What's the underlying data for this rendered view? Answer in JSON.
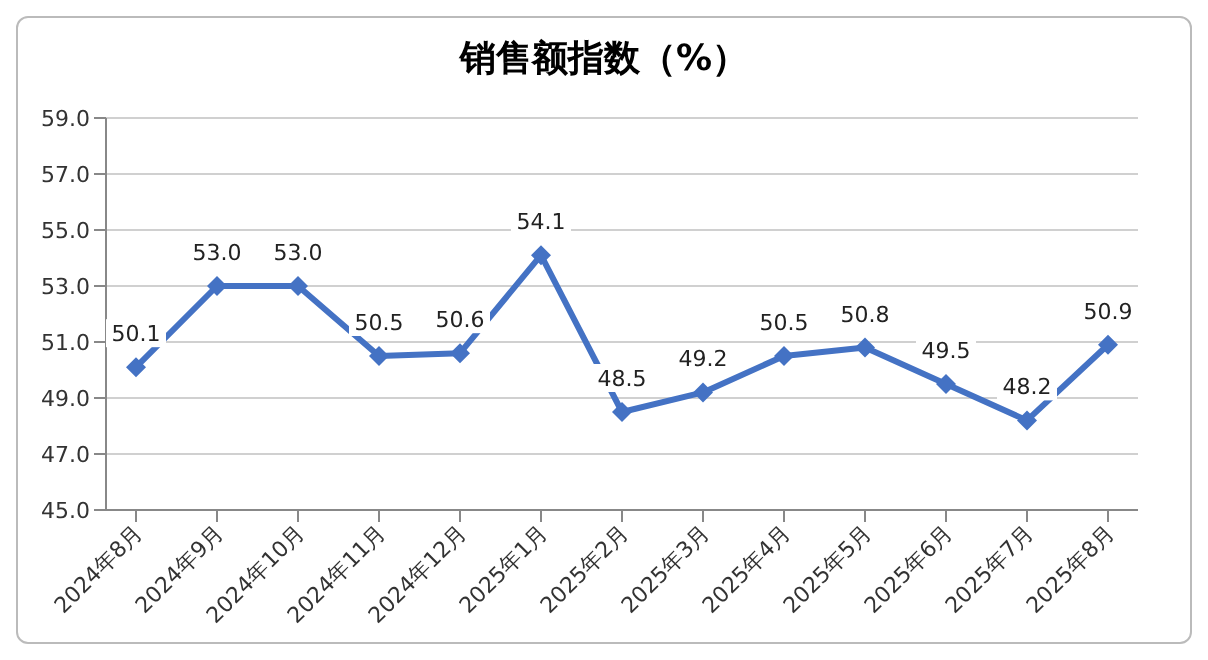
{
  "chart_data": {
    "type": "line",
    "title": "销售额指数（%）",
    "categories": [
      "2024年8月",
      "2024年9月",
      "2024年10月",
      "2024年11月",
      "2024年12月",
      "2025年1月",
      "2025年2月",
      "2025年3月",
      "2025年4月",
      "2025年5月",
      "2025年6月",
      "2025年7月",
      "2025年8月"
    ],
    "values": [
      50.1,
      53.0,
      53.0,
      50.5,
      50.6,
      54.1,
      48.5,
      49.2,
      50.5,
      50.8,
      49.5,
      48.2,
      50.9
    ],
    "value_labels": [
      "50.1",
      "53.0",
      "53.0",
      "50.5",
      "50.6",
      "54.1",
      "48.5",
      "49.2",
      "50.5",
      "50.8",
      "49.5",
      "48.2",
      "50.9"
    ],
    "color": "#4472c4",
    "ylim": [
      45,
      59
    ],
    "yticks": [
      {
        "value": 45,
        "label": "45.0"
      },
      {
        "value": 47,
        "label": "47.0"
      },
      {
        "value": 49,
        "label": "49.0"
      },
      {
        "value": 51,
        "label": "51.0"
      },
      {
        "value": 53,
        "label": "53.0"
      },
      {
        "value": 55,
        "label": "55.0"
      },
      {
        "value": 57,
        "label": "57.0"
      },
      {
        "value": 59,
        "label": "59.0"
      }
    ],
    "grid": "y",
    "marker": "diamond",
    "line_style": "solid"
  }
}
